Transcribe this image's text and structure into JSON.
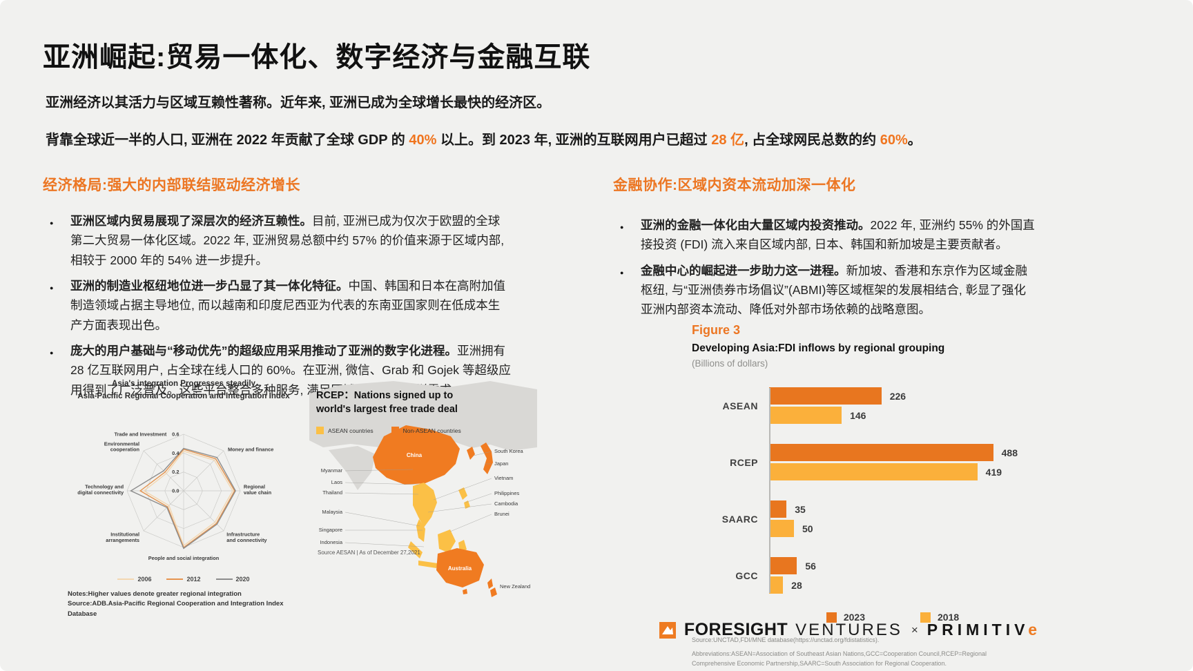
{
  "page": {
    "bg": "#f1f1ef",
    "accent": "#f0751f"
  },
  "title": "亚洲崛起:贸易一体化、数字经济与金融互联",
  "intro": {
    "p1": "亚洲经济以其活力与区域互赖性著称。近年来, 亚洲已成为全球增长最快的经济区。",
    "p2_segments": [
      {
        "t": "背靠全球近一半的人口, 亚洲在 2022 年贡献了全球 GDP 的 ",
        "hl": false
      },
      {
        "t": "40%",
        "hl": true
      },
      {
        "t": " 以上。到 2023 年, 亚洲的互联网用户已超过 ",
        "hl": false
      },
      {
        "t": "28 亿",
        "hl": true
      },
      {
        "t": ", 占全球网民总数的约 ",
        "hl": false
      },
      {
        "t": "60%",
        "hl": true
      },
      {
        "t": "。",
        "hl": false
      }
    ]
  },
  "columns": {
    "left": {
      "heading": "经济格局:强大的内部联结驱动经济增长",
      "bullets": [
        {
          "lead": "亚洲区域内贸易展现了深层次的经济互赖性。",
          "rest": "目前, 亚洲已成为仅次于欧盟的全球第二大贸易一体化区域。2022 年, 亚洲贸易总额中约 57% 的价值来源于区域内部, 相较于 2000 年的 54% 进一步提升。"
        },
        {
          "lead": "亚洲的制造业枢纽地位进一步凸显了其一体化特征。",
          "rest": "中国、韩国和日本在高附加值制造领域占据主导地位, 而以越南和印度尼西亚为代表的东南亚国家则在低成本生产方面表现出色。"
        },
        {
          "lead": "庞大的用户基础与“移动优先”的超级应用采用推动了亚洲的数字化进程。",
          "rest": "亚洲拥有 28 亿互联网用户, 占全球在线人口的 60%。在亚洲, 微信、Grab 和 Gojek 等超级应用得到了广泛普及。这些平台整合多种服务, 满足区域内人口的多样需求。"
        }
      ]
    },
    "right": {
      "heading": "金融协作:区域内资本流动加深一体化",
      "bullets": [
        {
          "lead": "亚洲的金融一体化由大量区域内投资推动。",
          "rest": "2022 年, 亚洲约 55% 的外国直接投资 (FDI) 流入来自区域内部, 日本、韩国和新加坡是主要贡献者。"
        },
        {
          "lead": "金融中心的崛起进一步助力这一进程。",
          "rest": "新加坡、香港和东京作为区域金融枢纽, 与“亚洲债券市场倡议”(ABMI)等区域框架的发展相结合, 彰显了强化亚洲内部资本流动、降低对外部市场依赖的战略意图。"
        }
      ]
    }
  },
  "chart_data": [
    {
      "type": "radar",
      "title_line1": "Asia's integration Progresses steadily",
      "title_line2": "Asia-Pacific Regional Cooperation and Integration Index",
      "axes": [
        "Trade and Investment",
        "Money and finance",
        "Regional\nvalue chain",
        "Infrastructure\nand connectivity",
        "People and social integration",
        "Institutional\narrangements",
        "Technology and\ndigital connectivity",
        "Environmental\ncooperation"
      ],
      "tick_labels": [
        "0.6",
        "0.4",
        "0.2",
        "0.0"
      ],
      "axis_range": [
        0,
        0.6
      ],
      "grid": true,
      "legend_position": "bottom",
      "series": [
        {
          "name": "2006",
          "color": "#f3d7b0",
          "values": [
            0.42,
            0.46,
            0.52,
            0.47,
            0.58,
            0.22,
            0.42,
            0.26
          ]
        },
        {
          "name": "2012",
          "color": "#e6944e",
          "values": [
            0.44,
            0.48,
            0.54,
            0.49,
            0.6,
            0.24,
            0.46,
            0.28
          ]
        },
        {
          "name": "2020",
          "color": "#8c8c8c",
          "values": [
            0.45,
            0.5,
            0.55,
            0.5,
            0.61,
            0.25,
            0.56,
            0.3
          ]
        }
      ],
      "notes": "Notes:Higher values denote greater regional integration",
      "source": "Source:ADB.Asia-Pacific Regional Cooperation and Integration Index Database"
    },
    {
      "type": "map",
      "title": "RCEP：Nations signed up to world's largest free trade deal",
      "legend": [
        {
          "label": "ASEAN countries",
          "color": "#fbc046"
        },
        {
          "label": "Non-ASEAN countries",
          "color": "#f07b21"
        }
      ],
      "labels_left": [
        "Myanmar",
        "Laos",
        "Thailand",
        "Malaysia",
        "Singapore",
        "Indonesia"
      ],
      "labels_right": [
        "South Korea",
        "Japan",
        "Vietnam",
        "Philippines",
        "Cambodia",
        "Brunei"
      ],
      "label_on_map": [
        "China",
        "Australia"
      ],
      "label_new_zealand": "New Zealand",
      "source": "Source AESAN | As of December 27,2021"
    },
    {
      "type": "bar",
      "orientation": "horizontal",
      "figure_label": "Figure 3",
      "title": "Developing Asia:FDI inflows by regional grouping",
      "subtitle": "(Billions of dollars)",
      "categories": [
        "ASEAN",
        "RCEP",
        "SAARC",
        "GCC"
      ],
      "series": [
        {
          "name": "2023",
          "color": "#e8761f",
          "values": [
            226,
            488,
            35,
            56
          ]
        },
        {
          "name": "2018",
          "color": "#fbb03b",
          "values": [
            146,
            419,
            50,
            28
          ]
        }
      ],
      "xlim": [
        0,
        500
      ],
      "grid": false,
      "legend_position": "bottom",
      "source": "Source:UNCTAD,FDI/MNE database(https://unctad.org/fdistatistics).",
      "abbreviations": "Abbreviations:ASEAN=Association of Southeast Asian Nations,GCC=Cooperation Council,RCEP=Regional Comprehensive Economic Partnership,SAARC=South Association for Regional Cooperation."
    }
  ],
  "footer": {
    "brand1": "FORESIGHT",
    "brand2": "VENTURES",
    "separator": "×",
    "brand3_main": "PRIMITIV",
    "brand3_accent": "e"
  }
}
